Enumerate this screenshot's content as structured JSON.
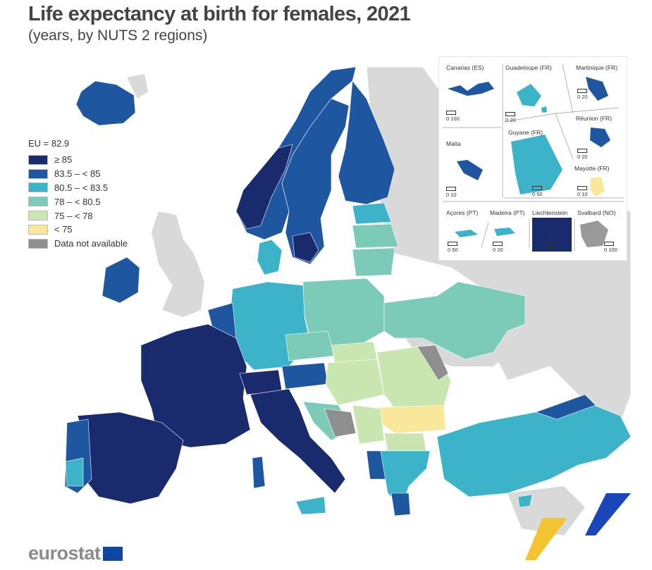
{
  "title": "Life expectancy at birth for females, 2021",
  "subtitle": "(years, by NUTS 2 regions)",
  "legend": {
    "title": "EU = 82.9",
    "items": [
      {
        "label": "≥ 85",
        "color": "#1a2b6d"
      },
      {
        "label": "83.5 – < 85",
        "color": "#1f56a0"
      },
      {
        "label": "80.5 – < 83.5",
        "color": "#3cb3c8"
      },
      {
        "label": "78 – < 80.5",
        "color": "#7ccbb8"
      },
      {
        "label": "75 – < 78",
        "color": "#c9e6b0"
      },
      {
        "label": "< 75",
        "color": "#f9e79b"
      },
      {
        "label": "Data not available",
        "color": "#8f8f8f"
      }
    ]
  },
  "non_eu_color": "#d9d9d9",
  "insets": [
    {
      "label": "Canarias (ES)",
      "scale": [
        "0",
        "100"
      ]
    },
    {
      "label": "Guadeloupe (FR)",
      "scale": [
        "0",
        "20"
      ]
    },
    {
      "label": "Martinique (FR)",
      "scale": [
        "0",
        "20"
      ]
    },
    {
      "label": "Réunion (FR)",
      "scale": [
        "0",
        "20"
      ]
    },
    {
      "label": "Malta",
      "scale": [
        "0",
        "10"
      ]
    },
    {
      "label": "Guyane (FR)",
      "scale": [
        "0",
        "50"
      ]
    },
    {
      "label": "Mayotte (FR)",
      "scale": [
        "0",
        "10"
      ]
    },
    {
      "label": "Açores (PT)",
      "scale": [
        "0",
        "50"
      ]
    },
    {
      "label": "Madeira (PT)",
      "scale": [
        "0",
        "20"
      ]
    },
    {
      "label": "Liechtenstein",
      "scale": [
        "0",
        "5"
      ]
    },
    {
      "label": "Svalbard (NO)",
      "scale": [
        "0",
        "100"
      ]
    }
  ],
  "logo": "eurostat"
}
